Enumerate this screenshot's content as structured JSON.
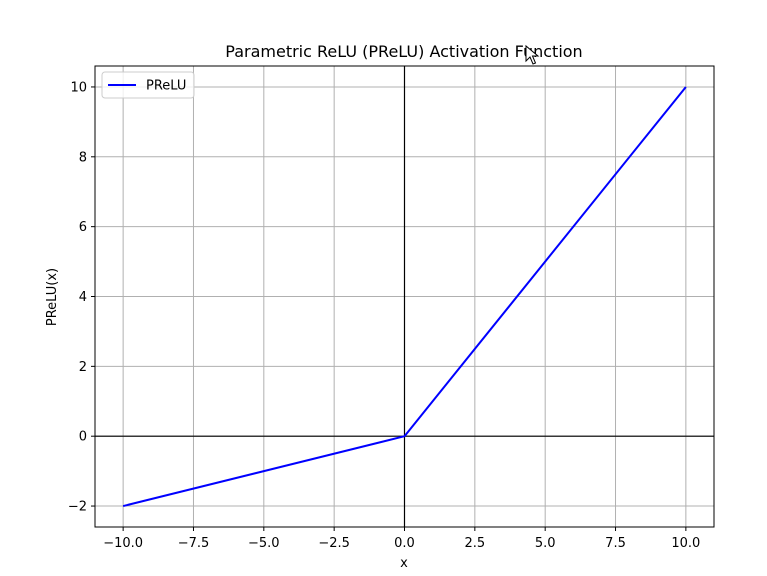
{
  "chart_data": {
    "type": "line",
    "title": "Parametric ReLU (PReLU) Activation Function",
    "xlabel": "x",
    "ylabel": "PReLU(x)",
    "xlim": [
      -11,
      11
    ],
    "ylim": [
      -2.6,
      10.6
    ],
    "x_ticks": [
      -10.0,
      -7.5,
      -5.0,
      -2.5,
      0.0,
      2.5,
      5.0,
      7.5,
      10.0
    ],
    "x_tick_labels": [
      "−10.0",
      "−7.5",
      "−5.0",
      "−2.5",
      "0.0",
      "2.5",
      "5.0",
      "7.5",
      "10.0"
    ],
    "y_ticks": [
      -2,
      0,
      2,
      4,
      6,
      8,
      10
    ],
    "y_tick_labels": [
      "−2",
      "0",
      "2",
      "4",
      "6",
      "8",
      "10"
    ],
    "grid": true,
    "reference_lines": {
      "x": 0,
      "y": 0
    },
    "legend": "top-left",
    "series": [
      {
        "name": "PReLU",
        "color": "#0000ff",
        "x": [
          -10,
          0,
          10
        ],
        "y": [
          -2,
          0,
          10
        ]
      }
    ]
  },
  "cursor": {
    "icon": "mouse-pointer-icon"
  }
}
